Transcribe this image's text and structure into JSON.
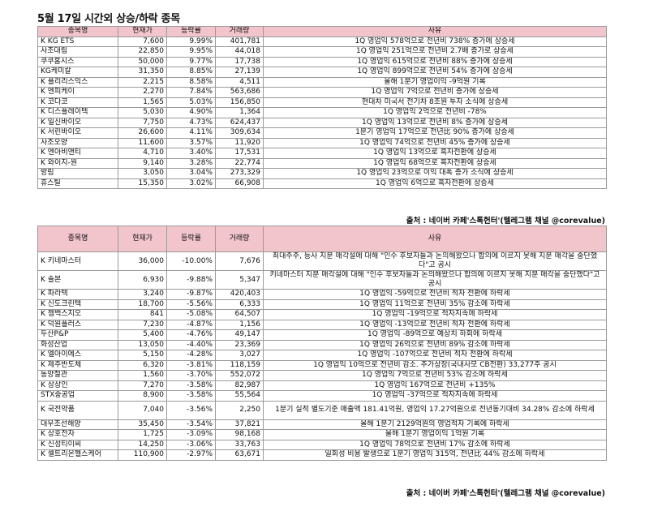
{
  "title": "5월 17일  시간외 상승/하락 종목",
  "rise": {
    "headers": [
      "종목명",
      "현재가",
      "등락률",
      "거래량",
      "사유"
    ],
    "rows": [
      {
        "name": "K KG ETS",
        "price": "7,600",
        "rate": "9.99%",
        "volume": "401,781",
        "reason": "1Q 영업익 578억으로 전년비 738% 증가에 상승세"
      },
      {
        "name": "   사조대림",
        "price": "22,850",
        "rate": "9.95%",
        "volume": "44,018",
        "reason": "1Q 영업익 251억으로 전년비 2.7배 증가로 상승세"
      },
      {
        "name": "   쿠쿠홈시스",
        "price": "50,000",
        "rate": "9.77%",
        "volume": "17,738",
        "reason": "1Q 영업익 615억으로 전년비 88% 증가에 상승세"
      },
      {
        "name": "   KG케미칼",
        "price": "31,350",
        "rate": "8.85%",
        "volume": "27,139",
        "reason": "1Q 영업익 899억으로 전년비 54% 증가에 상승세"
      },
      {
        "name": "K 플리리스익스",
        "price": "2,215",
        "rate": "8.58%",
        "volume": "4,511",
        "reason": "올해 1분기 영업이익 -9억원 기록"
      },
      {
        "name": "K 엔피케이",
        "price": "2,270",
        "rate": "7.84%",
        "volume": "563,686",
        "reason": "1Q 영업익 7억으로 전년비 증가에 상승세"
      },
      {
        "name": "K 코다코",
        "price": "1,565",
        "rate": "5.03%",
        "volume": "156,850",
        "reason": "현대차 미국서 전기차 8조원 투자 소식에 상승세"
      },
      {
        "name": "K 디스플레이텍",
        "price": "5,030",
        "rate": "4.90%",
        "volume": "1,364",
        "reason": "1Q 영업익 2억으로 전년비 -78%"
      },
      {
        "name": "K 일신바이오",
        "price": "7,750",
        "rate": "4.73%",
        "volume": "624,437",
        "reason": "1Q 영업익 13억으로 전년비 8% 증가에 상승세"
      },
      {
        "name": "K 서린바이오",
        "price": "26,600",
        "rate": "4.11%",
        "volume": "309,634",
        "reason": "1분기 영업익 17억으로 전년比 90% 증가에 상승세"
      },
      {
        "name": "   사조오양",
        "price": "11,600",
        "rate": "3.57%",
        "volume": "11,920",
        "reason": "1Q 영업익 74억으로 전년비 45% 증가에 상승세"
      },
      {
        "name": "K 엔아비앤티",
        "price": "4,710",
        "rate": "3.40%",
        "volume": "17,531",
        "reason": "1Q 영업익 13억으로 흑자전환에 상승세"
      },
      {
        "name": "K 와이지-원",
        "price": "9,140",
        "rate": "3.28%",
        "volume": "22,774",
        "reason": "1Q 영업익 68억으로 흑자전환에 상승세"
      },
      {
        "name": "   방림",
        "price": "3,050",
        "rate": "3.04%",
        "volume": "273,329",
        "reason": "1Q 영업익 23억으로 이익 대폭 증가 소식에 상승세"
      },
      {
        "name": "   휴스틸",
        "price": "15,350",
        "rate": "3.02%",
        "volume": "66,908",
        "reason": "1Q 영업익 6억으로 흑자전환에 상승세"
      }
    ],
    "source": "출처 : 네이버 카페'스톡헌터'(텔레그램 채널 @corevalue)"
  },
  "fall": {
    "headers": [
      "종목명",
      "현재가",
      "등락률",
      "거래량",
      "사유"
    ],
    "rows": [
      {
        "name": "K 키네마스터",
        "price": "36,000",
        "rate": "-10.00%",
        "volume": "7,676",
        "reason": "최대주주, 등사 지분 매각설에 대해 \"인수 후보자들과 논의해왔으나 합의에 이르지 못해 지분 매각을 중단했다\"고 공시",
        "tall": true
      },
      {
        "name": "K 솔본",
        "price": "6,930",
        "rate": "-9.88%",
        "volume": "5,347",
        "reason": "키네마스터 지분 매각설에 대해 \"인수 후보자들과 논의해왔으나 합의에 이르지 못해 지분 매각을 중단했다\"고 공시",
        "tall": true
      },
      {
        "name": "K 파라텍",
        "price": "3,240",
        "rate": "-9.87%",
        "volume": "420,403",
        "reason": "1Q 영업익 -59억으로 전년비 적자 전환에 하락세"
      },
      {
        "name": "K 신도크린텍",
        "price": "18,700",
        "rate": "-5.56%",
        "volume": "6,333",
        "reason": "1Q 영업익 11억으로 전년비 35% 감소에 하락세"
      },
      {
        "name": "K 젬백스지오",
        "price": "841",
        "rate": "-5.08%",
        "volume": "64,507",
        "reason": "1Q 영업익 -19억으로 적자지속에 하락세"
      },
      {
        "name": "K 덕원플러스",
        "price": "7,230",
        "rate": "-4.87%",
        "volume": "1,156",
        "reason": "1Q 영업익 -13억으로 전년비 적자 전환에 하락세"
      },
      {
        "name": "   두산P&P",
        "price": "5,400",
        "rate": "-4.76%",
        "volume": "49,147",
        "reason": "1Q 영업익 -89억으로 예상치 하회에 하락세"
      },
      {
        "name": "   화성산업",
        "price": "13,050",
        "rate": "-4.40%",
        "volume": "23,369",
        "reason": "1Q 영업익 26억으로 전년비 89% 감소에 하락세"
      },
      {
        "name": "K 엘아이에스",
        "price": "5,150",
        "rate": "-4.28%",
        "volume": "3,027",
        "reason": "1Q 영업익 -107억으로 전년비 적자 전환에 하락세"
      },
      {
        "name": "K 제주반도체",
        "price": "6,320",
        "rate": "-3.81%",
        "volume": "118,159",
        "reason": "1Q 영업익 10억으로 전년비 감소. 추가상장(국내사모 CB전환) 33,277주 공시"
      },
      {
        "name": "   동양철관",
        "price": "1,560",
        "rate": "-3.70%",
        "volume": "552,072",
        "reason": "1Q 영업익 7억으로 전년비 53% 감소에 하락세"
      },
      {
        "name": "K 상상인",
        "price": "7,270",
        "rate": "-3.58%",
        "volume": "82,987",
        "reason": "1Q 영업익 167억으로 전년비 +135%"
      },
      {
        "name": "   STX중공업",
        "price": "8,900",
        "rate": "-3.58%",
        "volume": "55,564",
        "reason": "1Q 영업익 -37억으로 적자지속에 하락세"
      },
      {
        "name": "K 국전약품",
        "price": "7,040",
        "rate": "-3.56%",
        "volume": "2,250",
        "reason": "1분기 실적 별도기준 매출액 181.41억원, 영업익 17.27억원으로 전년동기대비 34.28% 감소에 하락세",
        "tall": true
      },
      {
        "name": "   대우조선해양",
        "price": "35,450",
        "rate": "-3.54%",
        "volume": "37,821",
        "reason": "올해 1분기 2129억원의 영업적자 기록에 하락세"
      },
      {
        "name": "K 상호전자",
        "price": "1,725",
        "rate": "-3.09%",
        "volume": "98,168",
        "reason": "올해 1분기 영업이익 1억원 기록"
      },
      {
        "name": "K 신성티이씨",
        "price": "14,250",
        "rate": "-3.06%",
        "volume": "33,763",
        "reason": "1Q 영업익 78억으로 전년비 17% 감소에 하락세"
      },
      {
        "name": "K 셀트리온헬스케어",
        "price": "110,900",
        "rate": "-2.97%",
        "volume": "63,671",
        "reason": "일회성 비용 발생으로 1분기 영업익 315억, 전년比 44% 감소에 하락세"
      }
    ],
    "source": "출처 : 네이버 카페'스톡헌터'(텔레그램 채널 @corevalue)"
  }
}
